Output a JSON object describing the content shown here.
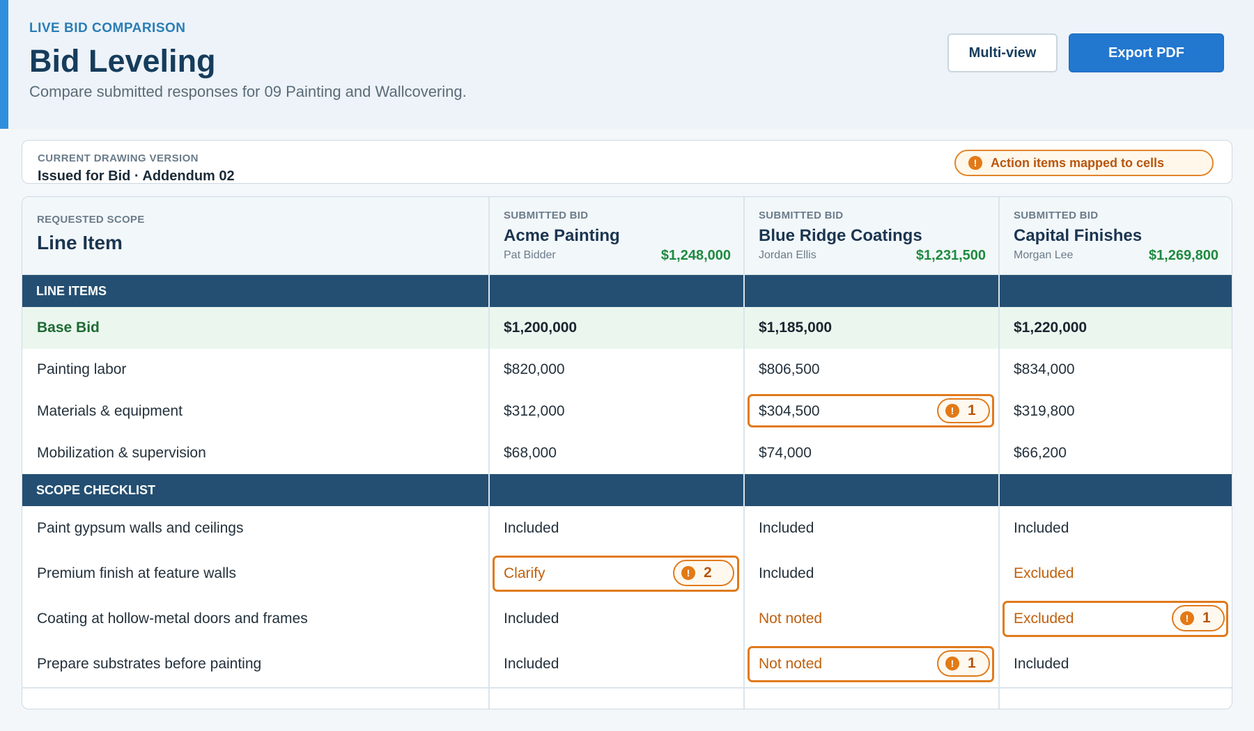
{
  "header": {
    "eyebrow": "LIVE BID COMPARISON",
    "title": "Bid Leveling",
    "subtitle": "Compare submitted responses for 09 Painting and Wallcovering.",
    "multi_view_label": "Multi-view",
    "export_label": "Export PDF"
  },
  "version": {
    "label": "CURRENT DRAWING VERSION",
    "value": "Issued for Bid · Addendum 02",
    "action_label": "Action items mapped to cells",
    "action_icon": "warning-icon"
  },
  "table": {
    "scope_header_small": "REQUESTED SCOPE",
    "scope_header": "Line Item",
    "bidders": [
      {
        "eyebrow": "SUBMITTED BID",
        "name": "Acme Painting",
        "contact": "Pat Bidder",
        "total": "$1,248,000"
      },
      {
        "eyebrow": "SUBMITTED BID",
        "name": "Blue Ridge Coatings",
        "contact": "Jordan Ellis",
        "total": "$1,231,500"
      },
      {
        "eyebrow": "SUBMITTED BID",
        "name": "Capital Finishes",
        "contact": "Morgan Lee",
        "total": "$1,269,800"
      }
    ],
    "section_line_items": "LINE ITEMS",
    "section_scope": "SCOPE CHECKLIST",
    "base_bid": {
      "label": "Base Bid",
      "values": [
        "$1,200,000",
        "$1,185,000",
        "$1,220,000"
      ]
    },
    "line_items": [
      {
        "label": "Painting labor",
        "values": [
          "$820,000",
          "$806,500",
          "$834,000"
        ]
      },
      {
        "label": "Materials & equipment",
        "values": [
          "$312,000",
          "$304,500",
          "$319,800"
        ],
        "flag_count": "1"
      },
      {
        "label": "Mobilization & supervision",
        "values": [
          "$68,000",
          "$74,000",
          "$66,200"
        ]
      }
    ],
    "scope_items": [
      {
        "label": "Paint gypsum walls and ceilings",
        "values": [
          "Included",
          "Included",
          "Included"
        ]
      },
      {
        "label": "Premium finish at feature walls",
        "values": [
          "Clarify",
          "Included",
          "Excluded"
        ],
        "flag_count": "2"
      },
      {
        "label": "Coating at hollow-metal doors and frames",
        "values": [
          "Included",
          "Not noted",
          "Excluded"
        ],
        "flag_count": "1"
      },
      {
        "label": "Prepare substrates before painting",
        "values": [
          "Included",
          "Not noted",
          "Included"
        ],
        "flag_count": "1"
      }
    ]
  },
  "colors": {
    "accent": "#2f8fdc",
    "band": "#244f72",
    "total_green": "#1f8a3f",
    "warning_orange": "#e07a1c"
  }
}
